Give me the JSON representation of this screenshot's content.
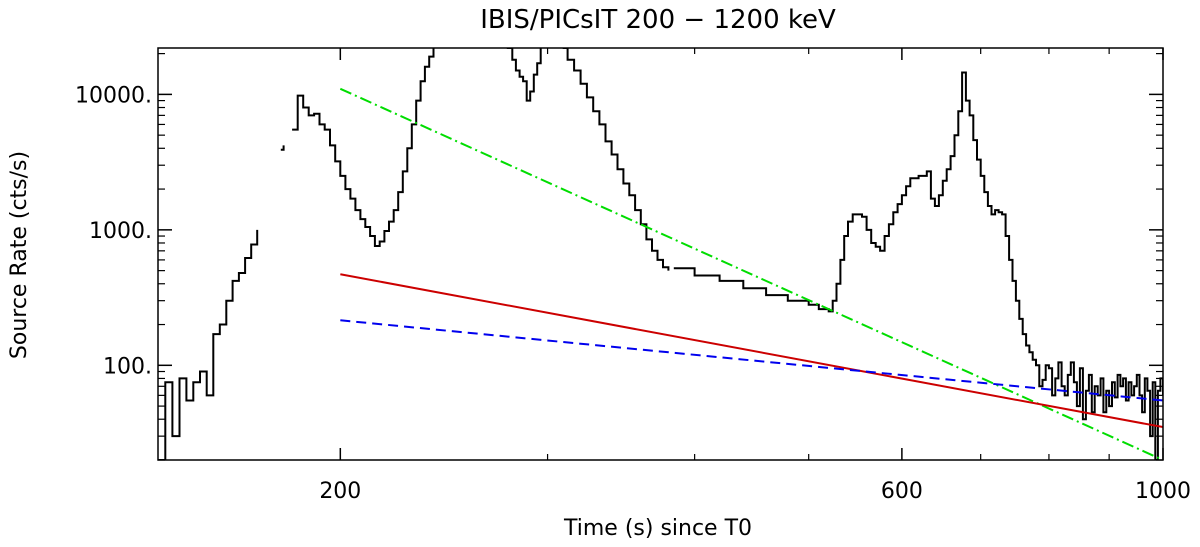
{
  "chart_data": {
    "type": "line",
    "title": "IBIS/PICsIT 200 − 1200 keV",
    "xlabel": "Time (s) since T0",
    "ylabel": "Source Rate (cts/s)",
    "xscale": "log",
    "yscale": "log",
    "xlim": [
      140,
      1000
    ],
    "ylim": [
      20,
      22000
    ],
    "x_ticks": [
      200,
      600,
      1000
    ],
    "x_tick_labels": [
      "200",
      "600",
      "1000"
    ],
    "y_ticks": [
      100,
      1000,
      10000
    ],
    "y_tick_labels": [
      "100.",
      "1000.",
      "10000."
    ],
    "grid": false,
    "legend": "none",
    "series": [
      {
        "style": "step",
        "color": "#000000",
        "segments": [
          [
            [
              140,
              20
            ],
            [
              142,
              75
            ],
            [
              144,
              30
            ],
            [
              146,
              80
            ],
            [
              148,
              55
            ],
            [
              150,
              75
            ],
            [
              152,
              90
            ],
            [
              154,
              60
            ],
            [
              156,
              170
            ],
            [
              158,
              200
            ],
            [
              160,
              300
            ],
            [
              162,
              420
            ],
            [
              164,
              480
            ],
            [
              166,
              620
            ],
            [
              168,
              780
            ],
            [
              170,
              1000
            ]
          ],
          [
            [
              178,
              3900
            ],
            [
              179,
              4200
            ]
          ],
          [
            [
              182,
              5500
            ],
            [
              184,
              9800
            ],
            [
              186,
              8000
            ],
            [
              188,
              7000
            ],
            [
              190,
              7200
            ],
            [
              192,
              6000
            ],
            [
              194,
              5500
            ],
            [
              196,
              4200
            ],
            [
              198,
              3200
            ],
            [
              200,
              2500
            ],
            [
              202,
              2000
            ],
            [
              204,
              1700
            ],
            [
              206,
              1400
            ],
            [
              208,
              1200
            ],
            [
              210,
              1050
            ],
            [
              212,
              900
            ],
            [
              214,
              760
            ],
            [
              216,
              820
            ],
            [
              218,
              980
            ],
            [
              220,
              1150
            ],
            [
              222,
              1400
            ],
            [
              224,
              1900
            ],
            [
              226,
              2700
            ],
            [
              228,
              4000
            ],
            [
              230,
              6000
            ],
            [
              232,
              9000
            ],
            [
              234,
              12500
            ],
            [
              236,
              16000
            ],
            [
              238,
              19000
            ],
            [
              240,
              22000
            ]
          ],
          [
            [
              277,
              22000
            ],
            [
              280,
              18000
            ],
            [
              282,
              15000
            ],
            [
              284,
              13500
            ],
            [
              286,
              12500
            ],
            [
              288,
              9000
            ],
            [
              290,
              10500
            ],
            [
              292,
              14000
            ],
            [
              294,
              17000
            ],
            [
              296,
              22000
            ]
          ],
          [
            [
              309,
              22000
            ],
            [
              312,
              18000
            ],
            [
              316,
              15000
            ],
            [
              320,
              12000
            ],
            [
              324,
              9500
            ],
            [
              328,
              7500
            ],
            [
              332,
              6000
            ],
            [
              336,
              4500
            ],
            [
              340,
              3600
            ],
            [
              344,
              2800
            ],
            [
              348,
              2200
            ],
            [
              352,
              1800
            ],
            [
              356,
              1400
            ],
            [
              360,
              1100
            ],
            [
              364,
              850
            ],
            [
              368,
              700
            ],
            [
              372,
              600
            ],
            [
              376,
              530
            ],
            [
              380,
              500
            ]
          ],
          [
            [
              384,
              520
            ],
            [
              400,
              460
            ],
            [
              420,
              420
            ],
            [
              440,
              370
            ],
            [
              460,
              330
            ],
            [
              480,
              300
            ],
            [
              500,
              280
            ],
            [
              510,
              260
            ],
            [
              520,
              250
            ],
            [
              524,
              300
            ],
            [
              528,
              400
            ],
            [
              532,
              600
            ],
            [
              536,
              900
            ],
            [
              540,
              1150
            ],
            [
              545,
              1300
            ],
            [
              555,
              1250
            ],
            [
              560,
              1000
            ],
            [
              565,
              800
            ],
            [
              570,
              750
            ],
            [
              575,
              700
            ],
            [
              580,
              900
            ],
            [
              585,
              1100
            ],
            [
              590,
              1350
            ],
            [
              595,
              1550
            ],
            [
              600,
              1800
            ],
            [
              605,
              2100
            ],
            [
              610,
              2400
            ],
            [
              620,
              2500
            ],
            [
              630,
              2700
            ],
            [
              635,
              1700
            ],
            [
              640,
              1500
            ],
            [
              645,
              1800
            ],
            [
              650,
              2300
            ],
            [
              655,
              2800
            ],
            [
              660,
              3500
            ],
            [
              665,
              5000
            ],
            [
              670,
              7500
            ],
            [
              675,
              14500
            ],
            [
              680,
              9000
            ],
            [
              685,
              7000
            ],
            [
              690,
              4600
            ],
            [
              695,
              3300
            ],
            [
              700,
              2500
            ],
            [
              705,
              1900
            ],
            [
              710,
              1500
            ],
            [
              715,
              1300
            ],
            [
              720,
              1400
            ],
            [
              725,
              1350
            ],
            [
              730,
              1300
            ],
            [
              735,
              900
            ],
            [
              740,
              600
            ],
            [
              745,
              420
            ],
            [
              750,
              300
            ],
            [
              755,
              220
            ],
            [
              760,
              170
            ],
            [
              765,
              140
            ],
            [
              770,
              125
            ],
            [
              775,
              110
            ],
            [
              780,
              100
            ],
            [
              785,
              70
            ],
            [
              790,
              78
            ],
            [
              795,
              100
            ],
            [
              800,
              95
            ],
            [
              805,
              60
            ],
            [
              810,
              80
            ],
            [
              815,
              105
            ],
            [
              820,
              70
            ],
            [
              825,
              60
            ],
            [
              830,
              85
            ],
            [
              835,
              105
            ],
            [
              840,
              75
            ],
            [
              845,
              50
            ],
            [
              850,
              95
            ],
            [
              855,
              40
            ],
            [
              860,
              65
            ],
            [
              865,
              85
            ],
            [
              870,
              45
            ],
            [
              875,
              70
            ],
            [
              880,
              60
            ],
            [
              885,
              80
            ],
            [
              890,
              45
            ],
            [
              895,
              65
            ],
            [
              900,
              50
            ],
            [
              905,
              75
            ],
            [
              910,
              58
            ],
            [
              915,
              85
            ],
            [
              920,
              70
            ],
            [
              925,
              80
            ],
            [
              930,
              55
            ],
            [
              935,
              75
            ],
            [
              940,
              60
            ],
            [
              945,
              70
            ],
            [
              950,
              85
            ],
            [
              955,
              60
            ],
            [
              960,
              45
            ],
            [
              965,
              80
            ],
            [
              970,
              65
            ],
            [
              975,
              30
            ],
            [
              980,
              75
            ],
            [
              985,
              20
            ],
            [
              990,
              65
            ],
            [
              995,
              80
            ],
            [
              1000,
              60
            ]
          ]
        ]
      },
      {
        "style": "dash-dot",
        "color": "#00dd00",
        "points": [
          [
            200,
            11000
          ],
          [
            1000,
            20
          ]
        ]
      },
      {
        "style": "solid",
        "color": "#cc0000",
        "points": [
          [
            200,
            470
          ],
          [
            1000,
            35
          ]
        ]
      },
      {
        "style": "dashed",
        "color": "#0000ee",
        "points": [
          [
            200,
            215
          ],
          [
            1000,
            55
          ]
        ]
      }
    ]
  }
}
